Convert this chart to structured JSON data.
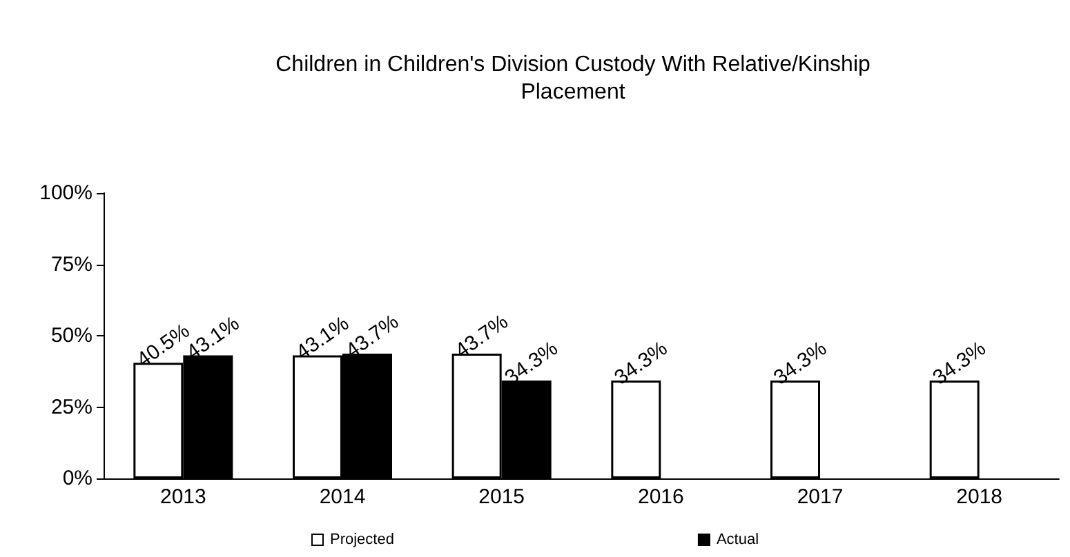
{
  "chart_data": {
    "type": "bar",
    "title": "Children in Children's Division Custody With Relative/Kinship\nPlacement",
    "categories": [
      "2013",
      "2014",
      "2015",
      "2016",
      "2017",
      "2018"
    ],
    "series": [
      {
        "name": "Projected",
        "color": "#ffffff",
        "values": [
          40.5,
          43.1,
          43.7,
          34.3,
          34.3,
          34.3
        ],
        "value_labels": [
          "40.5%",
          "43.1%",
          "43.7%",
          "34.3%",
          "34.3%",
          "34.3%"
        ]
      },
      {
        "name": "Actual",
        "color": "#000000",
        "values": [
          43.1,
          43.7,
          34.3,
          null,
          null,
          null
        ],
        "value_labels": [
          "43.1%",
          "43.7%",
          "34.3%",
          null,
          null,
          null
        ]
      }
    ],
    "ylim": [
      0,
      100
    ],
    "yticks": [
      {
        "value": 0,
        "label": "0%"
      },
      {
        "value": 25,
        "label": "25%"
      },
      {
        "value": 50,
        "label": "50%"
      },
      {
        "value": 75,
        "label": "75%"
      },
      {
        "value": 100,
        "label": "100%"
      }
    ],
    "grid": false,
    "legend": "bottom"
  }
}
